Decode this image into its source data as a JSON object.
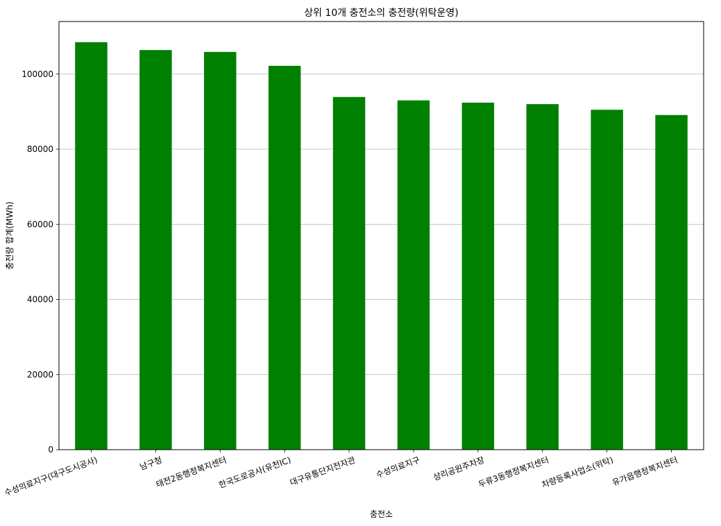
{
  "chart_data": {
    "type": "bar",
    "title": "상위 10개 충전소의 충전량(위탁운영)",
    "xlabel": "충전소",
    "ylabel": "충전량 합계(MWh)",
    "categories": [
      "수성의료지구(대구도시공사)",
      "남구청",
      "태전2동행정복지센터",
      "한국도로공사(유천IC)",
      "대구유통단지전자관",
      "수성의료지구",
      "상리공원주차장",
      "두류3동행정복지센터",
      "차량등록사업소(위탁)",
      "유가읍행정복지센터"
    ],
    "values": [
      108500,
      106400,
      105900,
      102200,
      93900,
      93000,
      92400,
      92000,
      90500,
      89100
    ],
    "ylim": [
      0,
      114000
    ],
    "yticks": [
      0,
      20000,
      40000,
      60000,
      80000,
      100000
    ],
    "grid": "y",
    "bar_color": "#008000",
    "label_rotation": -20
  }
}
